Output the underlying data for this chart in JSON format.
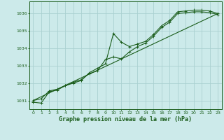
{
  "title": "Graphe pression niveau de la mer (hPa)",
  "bg_color": "#cceaea",
  "grid_color": "#aad0d0",
  "line_color": "#1a5c1a",
  "xlim": [
    -0.5,
    23.5
  ],
  "ylim": [
    1030.5,
    1036.7
  ],
  "xticks": [
    0,
    1,
    2,
    3,
    4,
    5,
    6,
    7,
    8,
    9,
    10,
    11,
    12,
    13,
    14,
    15,
    16,
    17,
    18,
    19,
    20,
    21,
    22,
    23
  ],
  "yticks": [
    1031,
    1032,
    1033,
    1034,
    1035,
    1036
  ],
  "series1": [
    [
      0,
      1031.0
    ],
    [
      1,
      1031.1
    ],
    [
      2,
      1031.55
    ],
    [
      3,
      1031.65
    ],
    [
      4,
      1031.85
    ],
    [
      5,
      1032.0
    ],
    [
      6,
      1032.15
    ],
    [
      7,
      1032.6
    ],
    [
      8,
      1032.85
    ],
    [
      9,
      1033.1
    ],
    [
      10,
      1034.85
    ],
    [
      11,
      1034.35
    ],
    [
      12,
      1034.1
    ],
    [
      13,
      1034.25
    ],
    [
      14,
      1034.4
    ],
    [
      15,
      1034.8
    ],
    [
      16,
      1035.3
    ],
    [
      17,
      1035.6
    ],
    [
      18,
      1036.1
    ],
    [
      19,
      1036.15
    ],
    [
      20,
      1036.2
    ],
    [
      21,
      1036.2
    ],
    [
      22,
      1036.15
    ],
    [
      23,
      1036.0
    ]
  ],
  "series2": [
    [
      0,
      1030.9
    ],
    [
      1,
      1030.85
    ],
    [
      2,
      1031.5
    ],
    [
      3,
      1031.6
    ],
    [
      4,
      1031.85
    ],
    [
      5,
      1032.05
    ],
    [
      6,
      1032.2
    ],
    [
      7,
      1032.55
    ],
    [
      8,
      1032.7
    ],
    [
      9,
      1033.35
    ],
    [
      10,
      1033.5
    ],
    [
      11,
      1033.4
    ],
    [
      12,
      1033.8
    ],
    [
      13,
      1034.1
    ],
    [
      14,
      1034.3
    ],
    [
      15,
      1034.7
    ],
    [
      16,
      1035.2
    ],
    [
      17,
      1035.5
    ],
    [
      18,
      1036.0
    ],
    [
      19,
      1036.05
    ],
    [
      20,
      1036.1
    ],
    [
      21,
      1036.1
    ],
    [
      22,
      1036.05
    ],
    [
      23,
      1035.95
    ]
  ],
  "series3": [
    [
      0,
      1031.0
    ],
    [
      23,
      1036.0
    ]
  ]
}
